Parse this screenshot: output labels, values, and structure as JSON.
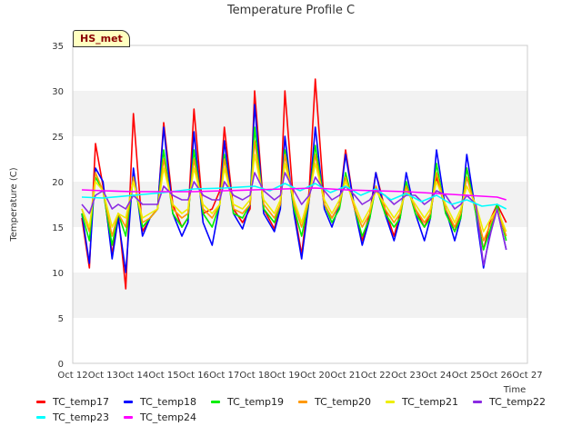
{
  "chart_data": {
    "type": "line",
    "title": "Temperature Profile C",
    "xlabel": "Time",
    "ylabel": "Temperature (C)",
    "badge": "HS_met",
    "ylim": [
      0,
      35
    ],
    "yticks": [
      0,
      5,
      10,
      15,
      20,
      25,
      30,
      35
    ],
    "xlim": [
      0,
      15
    ],
    "xticks": [
      "Oct 12",
      "Oct 13",
      "Oct 14",
      "Oct 15",
      "Oct 16",
      "Oct 17",
      "Oct 18",
      "Oct 19",
      "Oct 20",
      "Oct 21",
      "Oct 22",
      "Oct 23",
      "Oct 24",
      "Oct 25",
      "Oct 26",
      "Oct 27"
    ],
    "grid": "horizontal bands",
    "legend_position": "bottom",
    "series": [
      {
        "name": "TC_temp17",
        "color": "#ff0000",
        "x": [
          0.3,
          0.55,
          0.75,
          1.0,
          1.3,
          1.5,
          1.75,
          2.0,
          2.3,
          2.55,
          2.8,
          3.0,
          3.3,
          3.6,
          3.8,
          4.0,
          4.3,
          4.6,
          4.85,
          5.0,
          5.3,
          5.6,
          5.85,
          6.0,
          6.3,
          6.65,
          6.85,
          7.0,
          7.3,
          7.55,
          7.8,
          8.0,
          8.3,
          8.55,
          8.8,
          9.0,
          9.3,
          9.55,
          9.8,
          10.0,
          10.3,
          10.6,
          10.8,
          11.0,
          11.3,
          11.6,
          11.8,
          12.0,
          12.3,
          12.6,
          12.8,
          13.0,
          13.3,
          13.55,
          13.8,
          14.0,
          14.3
        ],
        "y": [
          16,
          10.5,
          24.2,
          19.5,
          12.0,
          16.5,
          8.2,
          27.5,
          14.5,
          16.0,
          17.0,
          26.5,
          17.5,
          15.0,
          16.0,
          28.0,
          16.5,
          17.0,
          19.0,
          26.0,
          17.0,
          15.5,
          17.0,
          30.0,
          17.0,
          14.8,
          17.5,
          30.0,
          17.0,
          12.0,
          19.0,
          31.3,
          17.5,
          16.0,
          17.5,
          23.5,
          17.0,
          13.5,
          16.5,
          21.0,
          17.0,
          14.0,
          16.5,
          19.5,
          17.0,
          15.0,
          16.5,
          20.5,
          17.0,
          14.5,
          16.5,
          21.5,
          17.0,
          12.5,
          16.0,
          17.5,
          15.5
        ]
      },
      {
        "name": "TC_temp18",
        "color": "#0000ff",
        "x": [
          0.3,
          0.55,
          0.75,
          1.0,
          1.3,
          1.5,
          1.75,
          2.0,
          2.3,
          2.55,
          2.8,
          3.0,
          3.3,
          3.6,
          3.8,
          4.0,
          4.3,
          4.6,
          4.85,
          5.0,
          5.3,
          5.6,
          5.85,
          6.0,
          6.3,
          6.65,
          6.85,
          7.0,
          7.3,
          7.55,
          7.8,
          8.0,
          8.3,
          8.55,
          8.8,
          9.0,
          9.3,
          9.55,
          9.8,
          10.0,
          10.3,
          10.6,
          10.8,
          11.0,
          11.3,
          11.6,
          11.8,
          12.0,
          12.3,
          12.6,
          12.8,
          13.0,
          13.3,
          13.55,
          13.8,
          14.0,
          14.3
        ],
        "y": [
          16.5,
          11.0,
          21.5,
          20.0,
          11.5,
          16.0,
          10.0,
          21.5,
          14.0,
          16.0,
          17.0,
          26.0,
          16.5,
          14.0,
          15.5,
          25.5,
          15.5,
          13.0,
          17.5,
          24.5,
          16.5,
          14.8,
          17.5,
          28.5,
          16.5,
          14.5,
          17.0,
          25.0,
          16.5,
          11.5,
          18.0,
          26.0,
          17.0,
          15.0,
          17.5,
          23.0,
          17.0,
          13.0,
          16.0,
          21.0,
          16.5,
          13.5,
          16.0,
          21.0,
          16.5,
          13.5,
          16.0,
          23.5,
          17.0,
          13.5,
          16.0,
          23.0,
          16.5,
          10.5,
          15.0,
          17.0,
          12.5
        ]
      },
      {
        "name": "TC_temp19",
        "color": "#00ee00",
        "x": [
          0.3,
          0.55,
          0.75,
          1.0,
          1.3,
          1.5,
          1.75,
          2.0,
          2.3,
          2.55,
          2.8,
          3.0,
          3.3,
          3.6,
          3.8,
          4.0,
          4.3,
          4.6,
          4.85,
          5.0,
          5.3,
          5.6,
          5.85,
          6.0,
          6.3,
          6.65,
          6.85,
          7.0,
          7.3,
          7.55,
          7.8,
          8.0,
          8.3,
          8.55,
          8.8,
          9.0,
          9.3,
          9.55,
          9.8,
          10.0,
          10.3,
          10.6,
          10.8,
          11.0,
          11.3,
          11.6,
          11.8,
          12.0,
          12.3,
          12.6,
          12.8,
          13.0,
          13.3,
          13.55,
          13.8,
          14.0,
          14.3
        ],
        "y": [
          16.5,
          13.5,
          20.5,
          19.0,
          13.0,
          16.5,
          14.0,
          20.5,
          15.0,
          16.0,
          17.0,
          23.5,
          16.5,
          15.0,
          16.0,
          23.5,
          16.5,
          15.0,
          17.5,
          23.0,
          16.5,
          16.0,
          17.5,
          26.0,
          17.0,
          15.5,
          17.5,
          23.5,
          17.0,
          14.0,
          18.0,
          24.0,
          17.5,
          15.5,
          17.0,
          21.0,
          17.0,
          14.0,
          16.0,
          19.5,
          16.5,
          15.0,
          16.0,
          20.0,
          16.5,
          15.0,
          16.0,
          22.0,
          16.5,
          14.5,
          16.0,
          21.5,
          16.5,
          12.5,
          15.0,
          17.5,
          13.5
        ]
      },
      {
        "name": "TC_temp20",
        "color": "#ff9900",
        "x": [
          0.3,
          0.55,
          0.75,
          1.0,
          1.3,
          1.5,
          1.75,
          2.0,
          2.3,
          2.55,
          2.8,
          3.0,
          3.3,
          3.6,
          3.8,
          4.0,
          4.3,
          4.6,
          4.85,
          5.0,
          5.3,
          5.6,
          5.85,
          6.0,
          6.3,
          6.65,
          6.85,
          7.0,
          7.3,
          7.55,
          7.8,
          8.0,
          8.3,
          8.55,
          8.8,
          9.0,
          9.3,
          9.55,
          9.8,
          10.0,
          10.3,
          10.6,
          10.8,
          11.0,
          11.3,
          11.6,
          11.8,
          12.0,
          12.3,
          12.6,
          12.8,
          13.0,
          13.3,
          13.55,
          13.8,
          14.0,
          14.3
        ],
        "y": [
          17,
          14.5,
          21.0,
          19.0,
          14.0,
          16.5,
          15.0,
          20.5,
          15.5,
          16.0,
          17.0,
          22.5,
          17.0,
          16.0,
          16.5,
          22.5,
          17.0,
          16.0,
          17.5,
          22.5,
          17.0,
          16.5,
          17.5,
          24.5,
          17.5,
          16.0,
          17.5,
          23.0,
          17.5,
          15.0,
          18.0,
          23.0,
          17.5,
          16.0,
          17.5,
          20.5,
          17.0,
          15.0,
          16.5,
          19.5,
          17.0,
          15.5,
          16.5,
          19.5,
          17.0,
          15.5,
          16.5,
          21.0,
          17.0,
          15.0,
          16.5,
          20.5,
          17.0,
          13.5,
          15.5,
          17.0,
          14.0
        ]
      },
      {
        "name": "TC_temp21",
        "color": "#eeee00",
        "x": [
          0.3,
          0.55,
          0.75,
          1.0,
          1.3,
          1.5,
          1.75,
          2.0,
          2.3,
          2.55,
          2.8,
          3.0,
          3.3,
          3.6,
          3.8,
          4.0,
          4.3,
          4.6,
          4.85,
          5.0,
          5.3,
          5.6,
          5.85,
          6.0,
          6.3,
          6.65,
          6.85,
          7.0,
          7.3,
          7.55,
          7.8,
          8.0,
          8.3,
          8.55,
          8.8,
          9.0,
          9.3,
          9.55,
          9.8,
          10.0,
          10.3,
          10.6,
          10.8,
          11.0,
          11.3,
          11.6,
          11.8,
          12.0,
          12.3,
          12.6,
          12.8,
          13.0,
          13.3,
          13.55,
          13.8,
          14.0,
          14.3
        ],
        "y": [
          17,
          15.0,
          20.0,
          19.0,
          15.0,
          16.5,
          16.0,
          20.0,
          16.0,
          16.5,
          17.0,
          21.5,
          17.5,
          16.5,
          17.0,
          21.5,
          17.5,
          16.5,
          17.5,
          21.5,
          17.5,
          17.0,
          18.0,
          23.0,
          18.0,
          16.5,
          18.0,
          22.0,
          18.0,
          15.5,
          18.5,
          22.0,
          18.0,
          16.5,
          18.0,
          20.0,
          17.5,
          15.5,
          17.0,
          19.0,
          17.5,
          16.0,
          17.0,
          19.0,
          17.5,
          16.0,
          17.0,
          20.0,
          17.5,
          15.5,
          17.0,
          19.5,
          17.5,
          14.5,
          16.0,
          17.0,
          14.5
        ]
      },
      {
        "name": "TC_temp22",
        "color": "#8a2be2",
        "x": [
          0.3,
          0.55,
          0.75,
          1.0,
          1.3,
          1.5,
          1.75,
          2.0,
          2.3,
          2.55,
          2.8,
          3.0,
          3.3,
          3.6,
          3.8,
          4.0,
          4.3,
          4.6,
          4.85,
          5.0,
          5.3,
          5.6,
          5.85,
          6.0,
          6.3,
          6.65,
          6.85,
          7.0,
          7.3,
          7.55,
          7.8,
          8.0,
          8.3,
          8.55,
          8.8,
          9.0,
          9.3,
          9.55,
          9.8,
          10.0,
          10.3,
          10.6,
          10.8,
          11.0,
          11.3,
          11.6,
          11.8,
          12.0,
          12.3,
          12.6,
          12.8,
          13.0,
          13.3,
          13.55,
          13.8,
          14.0,
          14.3
        ],
        "y": [
          17.5,
          16.5,
          18.5,
          19.0,
          17.0,
          17.5,
          17.0,
          18.5,
          17.5,
          17.5,
          17.5,
          19.5,
          18.5,
          18.0,
          18.0,
          20.0,
          18.5,
          18.0,
          18.0,
          20.0,
          18.5,
          18.0,
          18.5,
          21.0,
          19.0,
          18.0,
          18.5,
          21.0,
          19.0,
          17.5,
          18.5,
          20.5,
          19.0,
          18.0,
          18.5,
          19.5,
          18.5,
          17.5,
          18.0,
          19.0,
          18.5,
          17.5,
          18.0,
          18.5,
          18.5,
          17.5,
          18.0,
          19.0,
          18.5,
          17.0,
          17.5,
          18.5,
          17.5,
          10.8,
          14.5,
          17.0,
          12.5
        ]
      },
      {
        "name": "TC_temp23",
        "color": "#00ffff",
        "x": [
          0.3,
          1.0,
          2.0,
          3.0,
          4.0,
          5.0,
          6.0,
          6.5,
          7.0,
          7.5,
          8.0,
          8.5,
          9.0,
          9.5,
          10.0,
          10.5,
          11.0,
          11.5,
          12.0,
          12.5,
          13.0,
          13.5,
          14.0,
          14.3
        ],
        "y": [
          18.3,
          18.2,
          18.5,
          18.8,
          19.2,
          19.3,
          19.5,
          19.0,
          19.8,
          19.0,
          19.8,
          18.8,
          19.5,
          18.5,
          19.2,
          18.0,
          18.7,
          17.8,
          18.5,
          17.5,
          18.0,
          17.3,
          17.5,
          17.0
        ]
      },
      {
        "name": "TC_temp24",
        "color": "#ff00ff",
        "x": [
          0.3,
          1.0,
          2.0,
          3.0,
          4.0,
          5.0,
          6.0,
          7.0,
          8.0,
          9.0,
          10.0,
          11.0,
          12.0,
          13.0,
          14.0,
          14.3
        ],
        "y": [
          19.1,
          19.0,
          18.9,
          18.9,
          18.9,
          19.0,
          19.1,
          19.2,
          19.3,
          19.1,
          19.0,
          18.9,
          18.7,
          18.5,
          18.3,
          18.0
        ]
      }
    ]
  }
}
